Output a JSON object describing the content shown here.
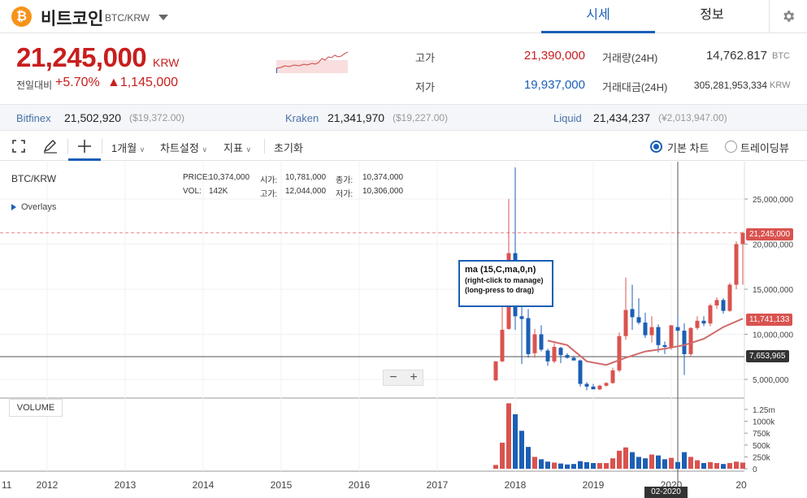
{
  "header": {
    "coin_symbol": "₿",
    "coin_name": "비트코인",
    "pair": "BTC/KRW",
    "tabs": [
      {
        "label": "시세",
        "active": true
      },
      {
        "label": "정보",
        "active": false
      }
    ],
    "icons": {
      "coin": "bitcoin-icon",
      "dropdown": "caret-down-icon",
      "settings": "gear-icon"
    }
  },
  "price": {
    "current": "21,245,000",
    "unit": "KRW",
    "change_label": "전일대비",
    "change_pct": "+5.70%",
    "change_amt": "▲1,145,000"
  },
  "stats": {
    "high_label": "고가",
    "high": "21,390,000",
    "low_label": "저가",
    "low": "19,937,000",
    "volume_label": "거래량(24H)",
    "volume": "14,762.817",
    "volume_unit": "BTC",
    "value_label": "거래대금(24H)",
    "value": "305,281,953,334",
    "value_unit": "KRW"
  },
  "exchanges": [
    {
      "name": "Bitfinex",
      "price": "21,502,920",
      "usd": "($19,372.00)"
    },
    {
      "name": "Kraken",
      "price": "21,341,970",
      "usd": "($19,227.00)"
    },
    {
      "name": "Liquid",
      "price": "21,434,237",
      "usd": "(¥2,013,947.00)"
    }
  ],
  "toolbar": {
    "interval": "1개월",
    "chart_settings": "차트설정",
    "indicators": "지표",
    "reset": "초기화",
    "view_basic": "기본 차트",
    "view_tradingview": "트레이딩뷰",
    "icons": [
      "fullscreen-icon",
      "pencil-icon",
      "crosshair-icon",
      "chevron-down-icon"
    ]
  },
  "chart": {
    "symbol": "BTC/KRW",
    "ohlc": {
      "price_label": "PRICE:",
      "price": "10,374,000",
      "open_label": "시가:",
      "open": "10,781,000",
      "close_label": "종가:",
      "close": "10,374,000",
      "vol_label": "VOL:",
      "vol": "142K",
      "high_label": "고가:",
      "high": "12,044,000",
      "low_label": "저가:",
      "low": "10,306,000"
    },
    "overlays_label": "Overlays",
    "tooltip": {
      "title": "ma (15,C,ma,0,n)",
      "line1": "(right-click to manage)",
      "line2": "(long-press to drag)"
    },
    "zoom": {
      "minus": "−",
      "plus": "+"
    },
    "volume_label": "VOLUME",
    "badges": {
      "last_price": "21,245,000",
      "ma_value": "11,741,133",
      "cursor_value": "7,653,965",
      "cursor_date": "02-2020"
    },
    "price_axis": [
      "25,000,000",
      "20,000,000",
      "15,000,000",
      "10,000,000",
      "5,000,000"
    ],
    "volume_axis": [
      "1.25m",
      "1000k",
      "750k",
      "500k",
      "250k",
      "0"
    ],
    "x_axis": [
      "11",
      "2012",
      "2013",
      "2014",
      "2015",
      "2016",
      "2017",
      "2018",
      "2019",
      "2020",
      "20"
    ],
    "colors": {
      "up": "#d9534f",
      "down": "#1b5fb5",
      "ma": "#d06a6a",
      "accent": "#1b5fb5"
    }
  },
  "chart_data": {
    "type": "candlestick",
    "interval": "monthly",
    "y_unit": "KRW",
    "ylim": [
      3000000,
      29000000
    ],
    "volume_ylim": [
      0,
      1500000
    ],
    "candles": [
      {
        "d": "2017-10",
        "o": 4900000,
        "h": 7000000,
        "l": 4800000,
        "c": 7000000,
        "v": 80000
      },
      {
        "d": "2017-11",
        "o": 7000000,
        "h": 14000000,
        "l": 6900000,
        "c": 10500000,
        "v": 550000
      },
      {
        "d": "2017-12",
        "o": 10600000,
        "h": 25000000,
        "l": 10500000,
        "c": 19000000,
        "v": 1380000
      },
      {
        "d": "2018-01",
        "o": 19000000,
        "h": 28500000,
        "l": 10500000,
        "c": 12000000,
        "v": 1150000
      },
      {
        "d": "2018-02",
        "o": 12000000,
        "h": 13500000,
        "l": 6700000,
        "c": 11700000,
        "v": 800000
      },
      {
        "d": "2018-03",
        "o": 11800000,
        "h": 12800000,
        "l": 7400000,
        "c": 7800000,
        "v": 460000
      },
      {
        "d": "2018-04",
        "o": 7900000,
        "h": 10600000,
        "l": 7400000,
        "c": 10000000,
        "v": 250000
      },
      {
        "d": "2018-05",
        "o": 10000000,
        "h": 11000000,
        "l": 8100000,
        "c": 8300000,
        "v": 200000
      },
      {
        "d": "2018-06",
        "o": 8200000,
        "h": 8400000,
        "l": 6500000,
        "c": 7000000,
        "v": 150000
      },
      {
        "d": "2018-07",
        "o": 7000000,
        "h": 9000000,
        "l": 6800000,
        "c": 8600000,
        "v": 130000
      },
      {
        "d": "2018-08",
        "o": 8500000,
        "h": 8600000,
        "l": 6800000,
        "c": 7700000,
        "v": 110000
      },
      {
        "d": "2018-09",
        "o": 7700000,
        "h": 7900000,
        "l": 7300000,
        "c": 7400000,
        "v": 90000
      },
      {
        "d": "2018-10",
        "o": 7400000,
        "h": 7600000,
        "l": 7200000,
        "c": 7100000,
        "v": 100000
      },
      {
        "d": "2018-11",
        "o": 7100000,
        "h": 7200000,
        "l": 4200000,
        "c": 4500000,
        "v": 160000
      },
      {
        "d": "2018-12",
        "o": 4500000,
        "h": 4700000,
        "l": 3800000,
        "c": 4200000,
        "v": 140000
      },
      {
        "d": "2019-01",
        "o": 4200000,
        "h": 4500000,
        "l": 3900000,
        "c": 3900000,
        "v": 120000
      },
      {
        "d": "2019-02",
        "o": 3900000,
        "h": 4400000,
        "l": 3800000,
        "c": 4300000,
        "v": 120000
      },
      {
        "d": "2019-03",
        "o": 4300000,
        "h": 4700000,
        "l": 4200000,
        "c": 4600000,
        "v": 120000
      },
      {
        "d": "2019-04",
        "o": 4600000,
        "h": 6300000,
        "l": 4500000,
        "c": 6000000,
        "v": 220000
      },
      {
        "d": "2019-05",
        "o": 6000000,
        "h": 10200000,
        "l": 5800000,
        "c": 9800000,
        "v": 380000
      },
      {
        "d": "2019-06",
        "o": 9800000,
        "h": 16300000,
        "l": 9400000,
        "c": 12700000,
        "v": 450000
      },
      {
        "d": "2019-07",
        "o": 12800000,
        "h": 15500000,
        "l": 10500000,
        "c": 11900000,
        "v": 350000
      },
      {
        "d": "2019-08",
        "o": 11900000,
        "h": 14000000,
        "l": 11100000,
        "c": 11300000,
        "v": 250000
      },
      {
        "d": "2019-09",
        "o": 11300000,
        "h": 12400000,
        "l": 9600000,
        "c": 9900000,
        "v": 220000
      },
      {
        "d": "2019-10",
        "o": 9900000,
        "h": 12000000,
        "l": 9100000,
        "c": 10800000,
        "v": 300000
      },
      {
        "d": "2019-11",
        "o": 10800000,
        "h": 11100000,
        "l": 8000000,
        "c": 8800000,
        "v": 280000
      },
      {
        "d": "2019-12",
        "o": 8800000,
        "h": 9200000,
        "l": 7800000,
        "c": 8600000,
        "v": 200000
      },
      {
        "d": "2020-01",
        "o": 8600000,
        "h": 11000000,
        "l": 8300000,
        "c": 11000000,
        "v": 230000
      },
      {
        "d": "2020-02",
        "o": 10800000,
        "h": 12000000,
        "l": 10300000,
        "c": 10400000,
        "v": 142000
      },
      {
        "d": "2020-03",
        "o": 10400000,
        "h": 11200000,
        "l": 5500000,
        "c": 7800000,
        "v": 350000
      },
      {
        "d": "2020-04",
        "o": 7800000,
        "h": 10800000,
        "l": 7500000,
        "c": 10700000,
        "v": 250000
      },
      {
        "d": "2020-05",
        "o": 10700000,
        "h": 12000000,
        "l": 10500000,
        "c": 11500000,
        "v": 180000
      },
      {
        "d": "2020-06",
        "o": 11500000,
        "h": 12000000,
        "l": 10900000,
        "c": 11200000,
        "v": 120000
      },
      {
        "d": "2020-07",
        "o": 11200000,
        "h": 13400000,
        "l": 10900000,
        "c": 13200000,
        "v": 140000
      },
      {
        "d": "2020-08",
        "o": 13200000,
        "h": 14100000,
        "l": 12800000,
        "c": 13800000,
        "v": 120000
      },
      {
        "d": "2020-09",
        "o": 13800000,
        "h": 14000000,
        "l": 12300000,
        "c": 12600000,
        "v": 100000
      },
      {
        "d": "2020-10",
        "o": 12600000,
        "h": 15700000,
        "l": 12500000,
        "c": 15500000,
        "v": 120000
      },
      {
        "d": "2020-11",
        "o": 15500000,
        "h": 20300000,
        "l": 15000000,
        "c": 20000000,
        "v": 150000
      },
      {
        "d": "2020-12",
        "o": 20000000,
        "h": 21390000,
        "l": 15500000,
        "c": 21245000,
        "v": 130000
      }
    ],
    "ma": {
      "name": "ma (15,C,ma,0,n)",
      "values": [
        {
          "d": "2018-06",
          "v": 9300000
        },
        {
          "d": "2018-09",
          "v": 8800000
        },
        {
          "d": "2018-12",
          "v": 7000000
        },
        {
          "d": "2019-03",
          "v": 6600000
        },
        {
          "d": "2019-06",
          "v": 7400000
        },
        {
          "d": "2019-09",
          "v": 8100000
        },
        {
          "d": "2019-12",
          "v": 8400000
        },
        {
          "d": "2020-03",
          "v": 8800000
        },
        {
          "d": "2020-06",
          "v": 9500000
        },
        {
          "d": "2020-09",
          "v": 10800000
        },
        {
          "d": "2020-12",
          "v": 11741133
        }
      ]
    },
    "last_price": 21245000
  }
}
